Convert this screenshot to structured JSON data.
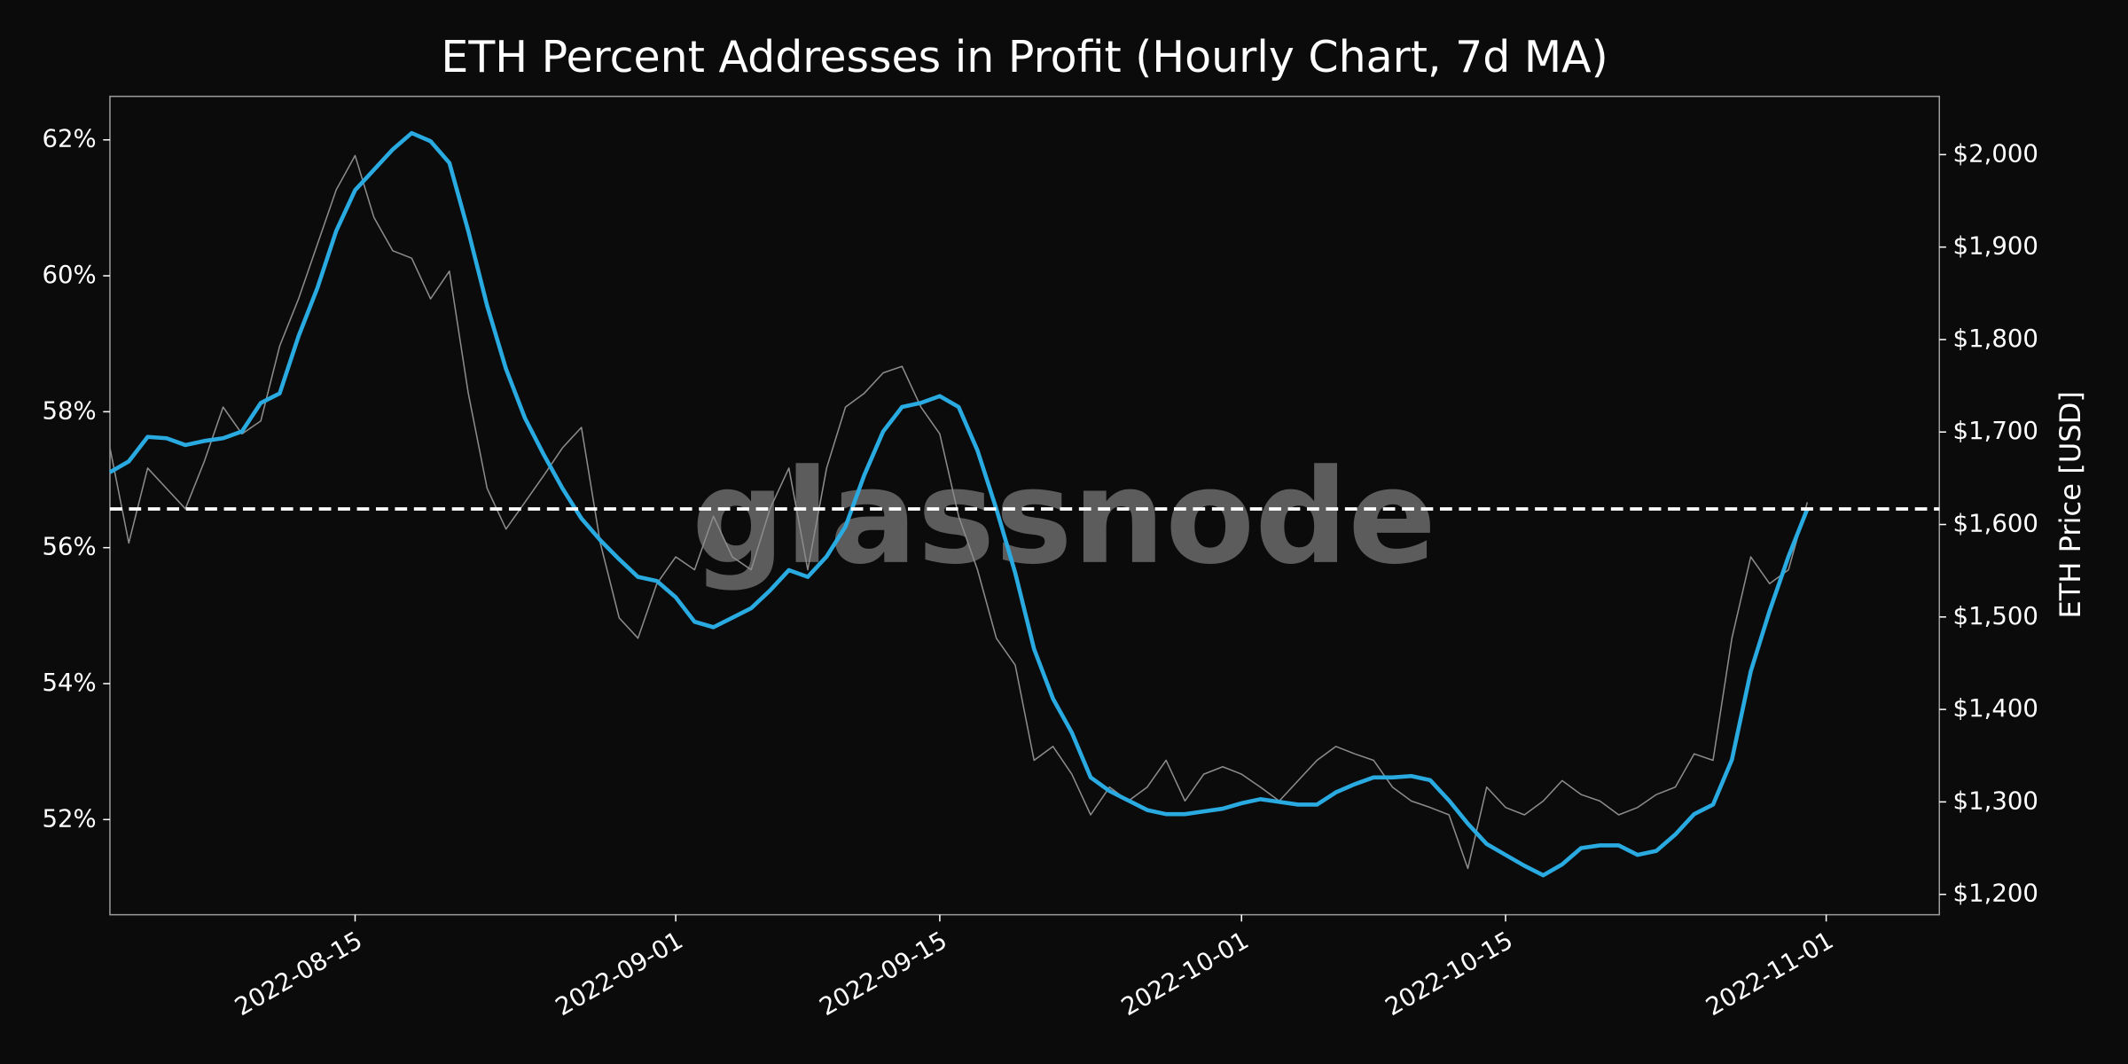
{
  "chart_data": {
    "type": "line",
    "title": "ETH Percent Addresses in Profit (Hourly Chart, 7d MA)",
    "y2_label": "ETH Price [USD]",
    "watermark": "glassnode",
    "x": [
      "2022-08-02",
      "2022-08-03",
      "2022-08-04",
      "2022-08-05",
      "2022-08-06",
      "2022-08-07",
      "2022-08-08",
      "2022-08-09",
      "2022-08-10",
      "2022-08-11",
      "2022-08-12",
      "2022-08-13",
      "2022-08-14",
      "2022-08-15",
      "2022-08-16",
      "2022-08-17",
      "2022-08-18",
      "2022-08-19",
      "2022-08-20",
      "2022-08-21",
      "2022-08-22",
      "2022-08-23",
      "2022-08-24",
      "2022-08-25",
      "2022-08-26",
      "2022-08-27",
      "2022-08-28",
      "2022-08-29",
      "2022-08-30",
      "2022-08-31",
      "2022-09-01",
      "2022-09-02",
      "2022-09-03",
      "2022-09-04",
      "2022-09-05",
      "2022-09-06",
      "2022-09-07",
      "2022-09-08",
      "2022-09-09",
      "2022-09-10",
      "2022-09-11",
      "2022-09-12",
      "2022-09-13",
      "2022-09-14",
      "2022-09-15",
      "2022-09-16",
      "2022-09-17",
      "2022-09-18",
      "2022-09-19",
      "2022-09-20",
      "2022-09-21",
      "2022-09-22",
      "2022-09-23",
      "2022-09-24",
      "2022-09-25",
      "2022-09-26",
      "2022-09-27",
      "2022-09-28",
      "2022-09-29",
      "2022-09-30",
      "2022-10-01",
      "2022-10-02",
      "2022-10-03",
      "2022-10-04",
      "2022-10-05",
      "2022-10-06",
      "2022-10-07",
      "2022-10-08",
      "2022-10-09",
      "2022-10-10",
      "2022-10-11",
      "2022-10-12",
      "2022-10-13",
      "2022-10-14",
      "2022-10-15",
      "2022-10-16",
      "2022-10-17",
      "2022-10-18",
      "2022-10-19",
      "2022-10-20",
      "2022-10-21",
      "2022-10-22",
      "2022-10-23",
      "2022-10-24",
      "2022-10-25",
      "2022-10-26",
      "2022-10-27",
      "2022-10-28",
      "2022-10-29",
      "2022-10-30",
      "2022-10-31"
    ],
    "xlim": [
      "2022-08-02",
      "2022-11-07"
    ],
    "xticks": [
      "2022-08-15",
      "2022-09-01",
      "2022-09-15",
      "2022-10-01",
      "2022-10-15",
      "2022-11-01"
    ],
    "ylim": [
      50.6,
      62.64
    ],
    "yticks": [
      {
        "value": 52,
        "label": "52%"
      },
      {
        "value": 54,
        "label": "54%"
      },
      {
        "value": 56,
        "label": "56%"
      },
      {
        "value": 58,
        "label": "58%"
      },
      {
        "value": 60,
        "label": "60%"
      },
      {
        "value": 62,
        "label": "62%"
      }
    ],
    "y2lim": [
      1178,
      2063
    ],
    "y2ticks": [
      {
        "value": 1200,
        "label": "$1,200"
      },
      {
        "value": 1300,
        "label": "$1,300"
      },
      {
        "value": 1400,
        "label": "$1,400"
      },
      {
        "value": 1500,
        "label": "$1,500"
      },
      {
        "value": 1600,
        "label": "$1,600"
      },
      {
        "value": 1700,
        "label": "$1,700"
      },
      {
        "value": 1800,
        "label": "$1,800"
      },
      {
        "value": 1900,
        "label": "$1,900"
      },
      {
        "value": 2000,
        "label": "$2,000"
      }
    ],
    "hline": 56.57,
    "hline_color": "#ffffff",
    "series": [
      {
        "name": "ETH Price",
        "color": "#8c8c8c",
        "axis": "y2",
        "values": [
          1683,
          1580,
          1661,
          1639,
          1617,
          1668,
          1727,
          1698,
          1712,
          1793,
          1844,
          1903,
          1962,
          1999,
          1932,
          1896,
          1888,
          1844,
          1874,
          1742,
          1639,
          1595,
          1624,
          1653,
          1683,
          1705,
          1580,
          1499,
          1477,
          1536,
          1565,
          1551,
          1609,
          1565,
          1551,
          1617,
          1661,
          1551,
          1661,
          1727,
          1742,
          1764,
          1771,
          1727,
          1698,
          1609,
          1551,
          1477,
          1448,
          1345,
          1360,
          1330,
          1286,
          1316,
          1301,
          1316,
          1345,
          1301,
          1330,
          1338,
          1330,
          1316,
          1301,
          1323,
          1345,
          1360,
          1352,
          1345,
          1316,
          1301,
          1294,
          1286,
          1228,
          1316,
          1294,
          1286,
          1301,
          1323,
          1308,
          1301,
          1286,
          1294,
          1308,
          1316,
          1352,
          1345,
          1477,
          1565,
          1536,
          1551,
          1624
        ]
      },
      {
        "name": "Percent Addresses in Profit (7d MA)",
        "color": "#29abe2",
        "axis": "y",
        "values": [
          57.11,
          57.27,
          57.63,
          57.61,
          57.51,
          57.57,
          57.61,
          57.71,
          58.13,
          58.27,
          59.11,
          59.82,
          60.66,
          61.26,
          61.56,
          61.86,
          62.1,
          61.98,
          61.66,
          60.66,
          59.56,
          58.63,
          57.91,
          57.37,
          56.87,
          56.43,
          56.11,
          55.83,
          55.57,
          55.51,
          55.27,
          54.91,
          54.83,
          54.97,
          55.11,
          55.37,
          55.67,
          55.57,
          55.87,
          56.31,
          57.07,
          57.71,
          58.07,
          58.13,
          58.23,
          58.07,
          57.43,
          56.57,
          55.63,
          54.51,
          53.78,
          53.28,
          52.62,
          52.42,
          52.28,
          52.14,
          52.08,
          52.08,
          52.12,
          52.16,
          52.24,
          52.3,
          52.26,
          52.22,
          52.22,
          52.4,
          52.52,
          52.62,
          52.62,
          52.64,
          52.58,
          52.28,
          51.94,
          51.64,
          51.48,
          51.32,
          51.18,
          51.34,
          51.58,
          51.62,
          51.62,
          51.48,
          51.54,
          51.78,
          52.08,
          52.22,
          52.88,
          54.18,
          55.07,
          55.87,
          56.57
        ]
      }
    ]
  }
}
